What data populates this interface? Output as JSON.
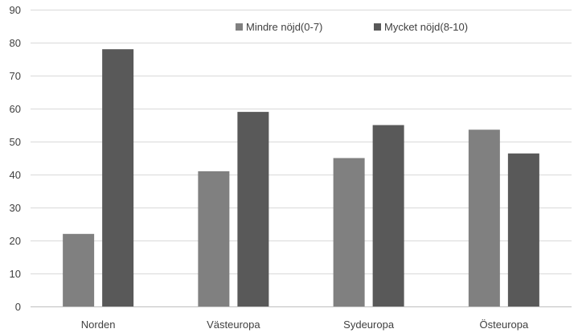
{
  "chart_data": {
    "type": "bar",
    "categories": [
      "Norden",
      "Västeuropa",
      "Sydeuropa",
      "Östeuropa"
    ],
    "series": [
      {
        "name": "Mindre nöjd(0-7)",
        "values": [
          22,
          41,
          45,
          53.6
        ],
        "color": "#808080"
      },
      {
        "name": "Mycket nöjd(8-10)",
        "values": [
          78,
          59,
          55,
          46.4
        ],
        "color": "#595959"
      }
    ],
    "title": "",
    "xlabel": "",
    "ylabel": "",
    "ylim": [
      0,
      90
    ],
    "yticks": [
      0,
      10,
      20,
      30,
      40,
      50,
      60,
      70,
      80,
      90
    ],
    "grid": true,
    "legend_position": "top-right"
  }
}
